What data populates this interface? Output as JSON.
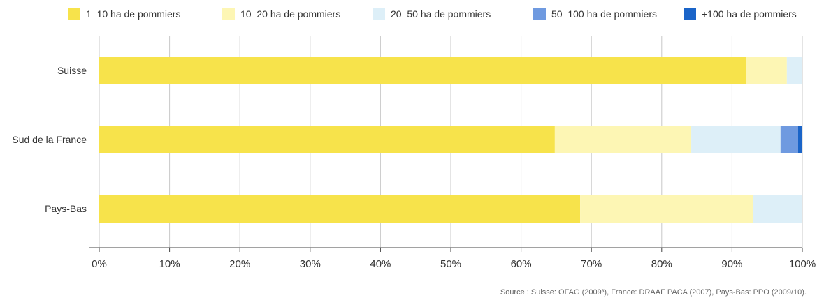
{
  "chart_data": {
    "type": "bar",
    "orientation": "horizontal",
    "stacked": true,
    "categories": [
      "Suisse",
      "Sud de la France",
      "Pays-Bas"
    ],
    "series": [
      {
        "name": "1–10 ha de pommiers",
        "color": "#f7e34b",
        "values": [
          92.0,
          64.8,
          68.4
        ]
      },
      {
        "name": "10–20 ha de pommiers",
        "color": "#fdf6b4",
        "values": [
          5.8,
          19.4,
          24.6
        ]
      },
      {
        "name": "20–50 ha de pommiers",
        "color": "#ddeff8",
        "values": [
          2.2,
          12.7,
          7.0
        ]
      },
      {
        "name": "50–100 ha de pommiers",
        "color": "#6f9ae0",
        "values": [
          0,
          2.5,
          0
        ]
      },
      {
        "name": "+100 ha de pommiers",
        "color": "#1a64c8",
        "values": [
          0,
          0.6,
          0
        ]
      }
    ],
    "xlim": [
      0,
      100
    ],
    "xticks": [
      "0%",
      "10%",
      "20%",
      "30%",
      "40%",
      "50%",
      "60%",
      "70%",
      "80%",
      "90%",
      "100%"
    ],
    "grid": true,
    "legend_position": "top"
  },
  "source": "Source : Suisse: OFAG (2009³), France: DRAAF PACA (2007), Pays-Bas: PPO (2009/10)."
}
